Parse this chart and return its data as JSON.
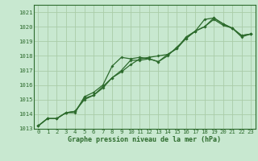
{
  "title": "Graphe pression niveau de la mer (hPa)",
  "bg_color": "#c8e8d0",
  "grid_color": "#aacca8",
  "line_color": "#2d6b2d",
  "xlim": [
    -0.5,
    23.5
  ],
  "ylim": [
    1013,
    1021.5
  ],
  "yticks": [
    1013,
    1014,
    1015,
    1016,
    1017,
    1018,
    1019,
    1020,
    1021
  ],
  "xticks": [
    0,
    1,
    2,
    3,
    4,
    5,
    6,
    7,
    8,
    9,
    10,
    11,
    12,
    13,
    14,
    15,
    16,
    17,
    18,
    19,
    20,
    21,
    22,
    23
  ],
  "series": [
    [
      1013.2,
      1013.7,
      1013.7,
      1014.1,
      1014.1,
      1015.2,
      1015.5,
      1016.0,
      1017.3,
      1017.9,
      1017.8,
      1017.9,
      1017.8,
      1017.6,
      1018.1,
      1018.5,
      1019.3,
      1019.7,
      1020.0,
      1020.6,
      1020.2,
      1019.9,
      1019.4,
      1019.5
    ],
    [
      1013.2,
      1013.7,
      1013.7,
      1014.1,
      1014.2,
      1015.0,
      1015.3,
      1015.8,
      1016.5,
      1016.9,
      1017.4,
      1017.8,
      1017.9,
      1018.0,
      1018.1,
      1018.5,
      1019.2,
      1019.7,
      1020.0,
      1020.5,
      1020.1,
      1019.9,
      1019.4,
      1019.5
    ],
    [
      1013.2,
      1013.7,
      1013.7,
      1014.1,
      1014.2,
      1015.1,
      1015.3,
      1015.9,
      1016.5,
      1017.0,
      1017.7,
      1017.7,
      1017.8,
      1017.6,
      1018.0,
      1018.6,
      1019.2,
      1019.7,
      1020.5,
      1020.6,
      1020.2,
      1019.9,
      1019.3,
      1019.5
    ]
  ],
  "xlabel_fontsize": 6.0,
  "tick_fontsize": 5.2,
  "linewidth": 0.9,
  "markersize": 2.0
}
